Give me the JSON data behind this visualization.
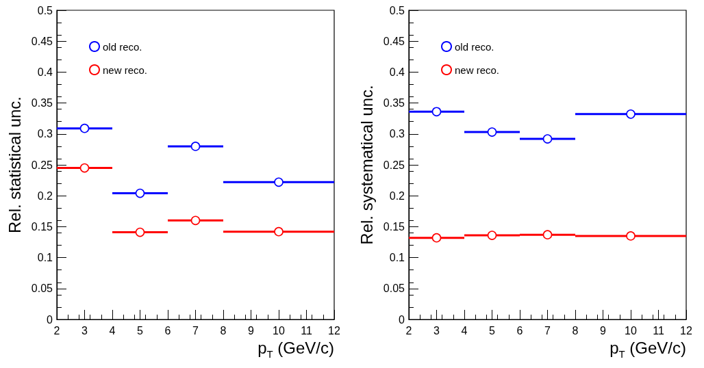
{
  "chart_data": [
    {
      "type": "scatter",
      "xlabel": "p$_{T}$ (GeV/c)",
      "ylabel": "Rel. statistical unc.",
      "x": [
        3,
        5,
        7,
        10
      ],
      "series": [
        {
          "name": "old reco.",
          "color": "#0000ff",
          "values": [
            0.309,
            0.204,
            0.28,
            0.222
          ],
          "xerrors": [
            1,
            1,
            1,
            2
          ]
        },
        {
          "name": "new reco.",
          "color": "#ff0000",
          "values": [
            0.245,
            0.141,
            0.16,
            0.142
          ],
          "xerrors": [
            1,
            1,
            1,
            2
          ]
        }
      ],
      "xlim": [
        2,
        12
      ],
      "xticks": [
        2,
        3,
        4,
        5,
        6,
        7,
        8,
        9,
        10,
        11,
        12
      ],
      "ylim": [
        0,
        0.5
      ],
      "yticks": [
        0,
        0.05,
        0.1,
        0.15,
        0.2,
        0.25,
        0.3,
        0.35,
        0.4,
        0.45,
        0.5
      ],
      "grid": false,
      "legend": "top left",
      "marker": "circle"
    },
    {
      "type": "scatter",
      "xlabel": "p$_{T}$ (GeV/c)",
      "ylabel": "Rel. systematical unc.",
      "x": [
        3,
        5,
        7,
        10
      ],
      "series": [
        {
          "name": "old reco.",
          "color": "#0000ff",
          "values": [
            0.336,
            0.303,
            0.292,
            0.332
          ],
          "xerrors": [
            1,
            1,
            1,
            2
          ]
        },
        {
          "name": "new reco.",
          "color": "#ff0000",
          "values": [
            0.132,
            0.136,
            0.137,
            0.135
          ],
          "xerrors": [
            1,
            1,
            1,
            2
          ]
        }
      ],
      "xlim": [
        2,
        12
      ],
      "xticks": [
        2,
        3,
        4,
        5,
        6,
        7,
        8,
        9,
        10,
        11,
        12
      ],
      "ylim": [
        0,
        0.5
      ],
      "yticks": [
        0,
        0.05,
        0.1,
        0.15,
        0.2,
        0.25,
        0.3,
        0.35,
        0.4,
        0.45,
        0.5
      ],
      "grid": false,
      "legend": "top left",
      "marker": "circle"
    }
  ]
}
